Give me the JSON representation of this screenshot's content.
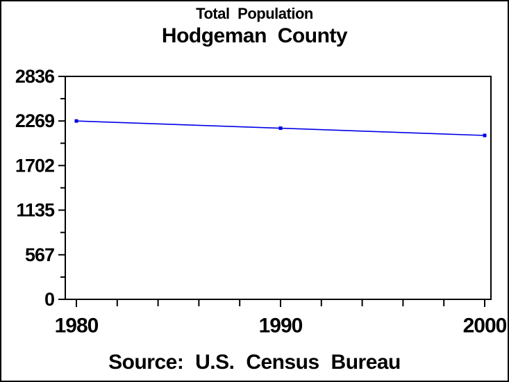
{
  "window": {
    "background_color": "#ffffff",
    "border_color": "#000000"
  },
  "header": {
    "title": "Total Population",
    "subtitle": "Hodgeman County"
  },
  "footer": {
    "source_note": "Source: U.S. Census Bureau"
  },
  "chart_data": {
    "type": "line",
    "title": "Total Population",
    "subtitle": "Hodgeman County",
    "footnote": "Source: U.S. Census Bureau",
    "xlabel": "",
    "ylabel": "",
    "x": [
      1980,
      1990,
      2000
    ],
    "series": [
      {
        "name": "Total Population",
        "values": [
          2269,
          2177,
          2085
        ],
        "color": "#0000E6",
        "marker": "square"
      }
    ],
    "xlim": [
      1980,
      2000
    ],
    "ylim": [
      0,
      2836
    ],
    "x_major_ticks": [
      1980,
      1990,
      2000
    ],
    "x_tick_labels": [
      "1980",
      "1990",
      "2000"
    ],
    "x_minor_step": 2,
    "y_major_ticks": [
      0,
      567,
      1135,
      1702,
      2269,
      2836
    ],
    "y_tick_labels": [
      "0",
      "567",
      "1135",
      "1702",
      "2269",
      "2836"
    ],
    "y_minor_per_interval": 1,
    "grid": false,
    "legend": "none",
    "frame": true,
    "axis_color": "#000000",
    "text_color": "#000000"
  }
}
